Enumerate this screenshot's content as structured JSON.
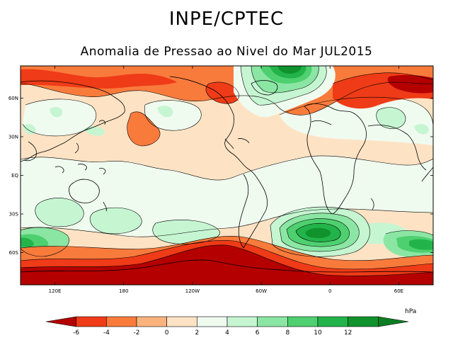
{
  "header": {
    "title": "INPE/CPTEC",
    "subtitle": "Anomalia de Pressao ao Nivel do Mar JUL2015"
  },
  "map": {
    "lat_labels": [
      "60N",
      "30N",
      "EQ",
      "30S",
      "60S"
    ],
    "lat_values": [
      60,
      30,
      0,
      -30,
      -60
    ],
    "lon_labels": [
      "120E",
      "180",
      "120W",
      "60W",
      "0",
      "60E"
    ],
    "lon_values": [
      120,
      180,
      240,
      300,
      360,
      420
    ],
    "lon_range": [
      90,
      450
    ],
    "lat_range": [
      -85,
      85
    ]
  },
  "colorbar": {
    "unit": "hPa",
    "ticks": [
      "-6",
      "-4",
      "-2",
      "0",
      "2",
      "4",
      "6",
      "8",
      "10",
      "12"
    ],
    "colors": [
      "#b50000",
      "#ef3b17",
      "#f97b3c",
      "#fbb37e",
      "#fde3c4",
      "#f0fbf0",
      "#c6f5d2",
      "#8be6a4",
      "#4fd070",
      "#22b44a",
      "#10932c",
      "#0b7d22"
    ]
  }
}
